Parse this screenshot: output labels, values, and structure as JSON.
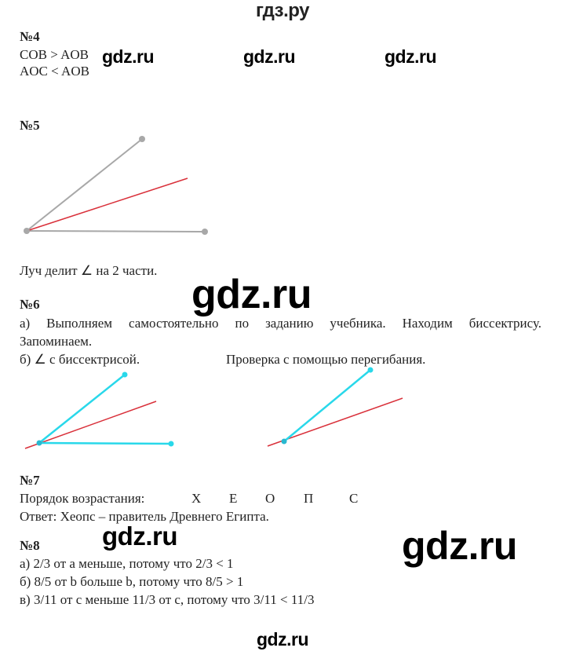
{
  "header": {
    "site_title": "гдз.ру"
  },
  "watermark": "gdz.ru",
  "task4": {
    "number": "№4",
    "lines": [
      "COB > AOB",
      "AOC < AOB"
    ]
  },
  "task5": {
    "number": "№5",
    "caption": "Луч делит ∠ на 2 части."
  },
  "task6": {
    "number": "№6",
    "a": "а) Выполняем самостоятельно по заданию учебника. Находим биссектрису.",
    "a2": "Запоминаем.",
    "b": "б) ∠ с биссектрисой.",
    "b_right": "Проверка с помощью перегибания."
  },
  "task7": {
    "number": "№7",
    "order_label": "Порядок возрастания:",
    "letters": [
      "Х",
      "Е",
      "О",
      "П",
      "С"
    ],
    "answer": "Ответ: Хеопс – правитель Древнего Египта."
  },
  "task8": {
    "number": "№8",
    "lines": [
      "а) 2/3 от a меньше, потому что 2/3 < 1",
      "б) 8/5 от b больше b, потому что 8/5 > 1",
      "в) 3/11 от c меньше 11/3 от c, потому что 3/11 < 11/3"
    ]
  },
  "colors": {
    "gray": "#a8a8a8",
    "red": "#d9303a",
    "cyan": "#29d8ea"
  }
}
